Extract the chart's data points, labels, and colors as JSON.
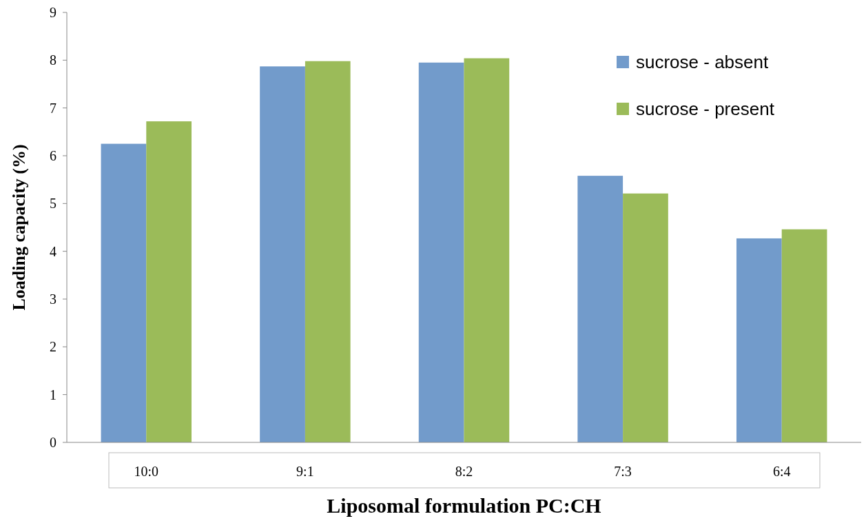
{
  "chart_data": {
    "type": "bar",
    "xlabel": "Liposomal formulation PC:CH",
    "ylabel": "Loading capacity (%)",
    "categories": [
      "10:0",
      "9:1",
      "8:2",
      "7:3",
      "6:4"
    ],
    "series": [
      {
        "name": "sucrose - absent",
        "color": "#729bcb",
        "values": [
          6.25,
          7.87,
          7.95,
          5.58,
          4.27
        ]
      },
      {
        "name": "sucrose - present",
        "color": "#9bbb59",
        "values": [
          6.72,
          7.98,
          8.04,
          5.21,
          4.46
        ]
      }
    ],
    "ylim": [
      0,
      9
    ],
    "yticks": [
      0,
      1,
      2,
      3,
      4,
      5,
      6,
      7,
      8,
      9
    ],
    "grid": false,
    "legend": "top right"
  }
}
